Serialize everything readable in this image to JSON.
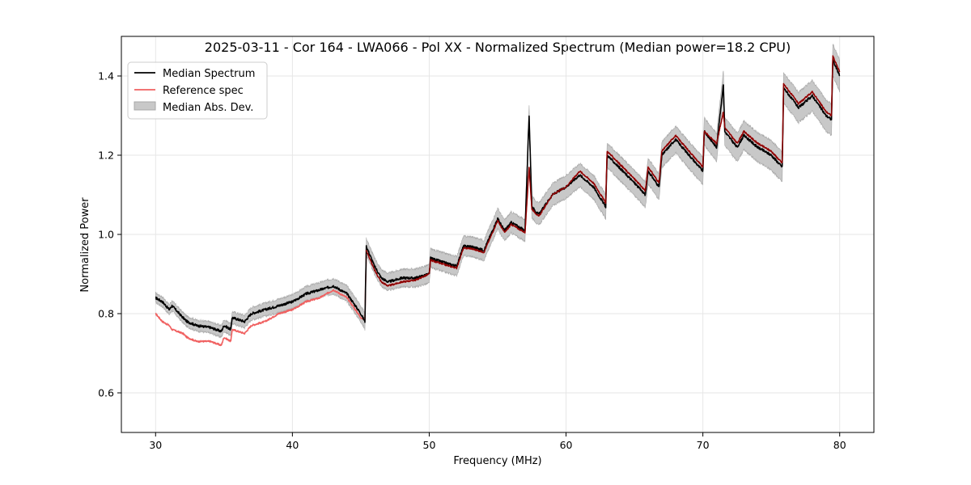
{
  "chart_data": {
    "type": "line",
    "title": "2025-03-11 - Cor 164 - LWA066 - Pol XX - Normalized Spectrum (Median power=18.2 CPU)",
    "xlabel": "Frequency (MHz)",
    "ylabel": "Normalized Power",
    "xlim": [
      27.5,
      82.5
    ],
    "ylim": [
      0.5,
      1.5
    ],
    "xticks": [
      30,
      40,
      50,
      60,
      70,
      80
    ],
    "yticks": [
      0.6,
      0.8,
      1.0,
      1.2,
      1.4
    ],
    "grid": true,
    "legend_position": "top-left",
    "legend": [
      "Median Spectrum",
      "Reference spec",
      "Median Abs. Dev."
    ],
    "colors": {
      "median": "#000000",
      "reference": "#f06060",
      "reference_overlap": "#8b0000",
      "mad_fill": "#c8c8c8",
      "mad_edge": "#a8a8a8",
      "grid": "#e6e6e6"
    },
    "series": [
      {
        "name": "Median Spectrum",
        "x": [
          30.0,
          30.5,
          31.0,
          31.2,
          32.0,
          32.3,
          33.0,
          34.0,
          34.8,
          35.0,
          35.5,
          35.6,
          36.5,
          37.0,
          38.0,
          39.0,
          40.0,
          41.0,
          42.0,
          43.0,
          44.0,
          45.0,
          45.3,
          45.4,
          46.0,
          46.5,
          47.0,
          48.0,
          49.0,
          50.0,
          50.1,
          51.0,
          52.0,
          52.5,
          53.0,
          54.0,
          55.0,
          55.5,
          56.0,
          57.0,
          57.3,
          57.5,
          58.0,
          59.0,
          60.0,
          61.0,
          62.0,
          62.9,
          63.0,
          65.0,
          65.8,
          66.0,
          66.8,
          67.0,
          68.0,
          69.0,
          70.0,
          70.1,
          71.0,
          71.5,
          71.6,
          72.5,
          73.0,
          74.0,
          75.0,
          75.8,
          75.9,
          77.0,
          78.0,
          79.0,
          79.4,
          79.5,
          80.0
        ],
        "values": [
          0.84,
          0.83,
          0.81,
          0.82,
          0.79,
          0.78,
          0.77,
          0.765,
          0.755,
          0.77,
          0.76,
          0.79,
          0.78,
          0.8,
          0.81,
          0.82,
          0.83,
          0.85,
          0.86,
          0.87,
          0.85,
          0.8,
          0.78,
          0.97,
          0.92,
          0.89,
          0.88,
          0.89,
          0.89,
          0.9,
          0.94,
          0.93,
          0.92,
          0.97,
          0.97,
          0.96,
          1.04,
          1.01,
          1.03,
          1.01,
          1.3,
          1.07,
          1.05,
          1.1,
          1.12,
          1.15,
          1.12,
          1.07,
          1.2,
          1.13,
          1.1,
          1.16,
          1.12,
          1.2,
          1.24,
          1.2,
          1.16,
          1.26,
          1.22,
          1.38,
          1.26,
          1.22,
          1.25,
          1.22,
          1.2,
          1.17,
          1.37,
          1.32,
          1.35,
          1.3,
          1.29,
          1.44,
          1.4
        ]
      },
      {
        "name": "Reference spec",
        "x": [
          30.0,
          30.5,
          31.0,
          31.2,
          32.0,
          32.3,
          33.0,
          34.0,
          34.8,
          35.0,
          35.5,
          35.6,
          36.5,
          37.0,
          38.0,
          39.0,
          40.0,
          41.0,
          42.0,
          43.0,
          44.0,
          45.0,
          45.3,
          45.4,
          46.0,
          46.5,
          47.0,
          48.0,
          49.0,
          50.0,
          50.1,
          51.0,
          52.0,
          52.5,
          53.0,
          54.0,
          55.0,
          55.5,
          56.0,
          57.0,
          57.3,
          57.5,
          58.0,
          59.0,
          60.0,
          61.0,
          62.0,
          62.9,
          63.0,
          65.0,
          65.8,
          66.0,
          66.8,
          67.0,
          68.0,
          69.0,
          70.0,
          70.1,
          71.0,
          71.5,
          71.6,
          72.5,
          73.0,
          74.0,
          75.0,
          75.8,
          75.9,
          77.0,
          78.0,
          79.0,
          79.4,
          79.5,
          80.0
        ],
        "values": [
          0.8,
          0.78,
          0.77,
          0.76,
          0.75,
          0.74,
          0.73,
          0.73,
          0.72,
          0.74,
          0.73,
          0.76,
          0.75,
          0.77,
          0.78,
          0.8,
          0.81,
          0.83,
          0.84,
          0.86,
          0.84,
          0.79,
          0.785,
          0.96,
          0.91,
          0.88,
          0.87,
          0.88,
          0.885,
          0.9,
          0.935,
          0.925,
          0.915,
          0.965,
          0.965,
          0.955,
          1.035,
          1.005,
          1.025,
          1.005,
          1.17,
          1.065,
          1.045,
          1.1,
          1.12,
          1.16,
          1.13,
          1.08,
          1.21,
          1.14,
          1.11,
          1.17,
          1.13,
          1.21,
          1.25,
          1.21,
          1.17,
          1.26,
          1.23,
          1.31,
          1.27,
          1.23,
          1.26,
          1.23,
          1.21,
          1.18,
          1.38,
          1.33,
          1.36,
          1.31,
          1.3,
          1.45,
          1.41
        ]
      }
    ],
    "mad_band": {
      "name": "Median Abs. Dev.",
      "half_width_start": 0.012,
      "half_width_end": 0.04
    }
  }
}
